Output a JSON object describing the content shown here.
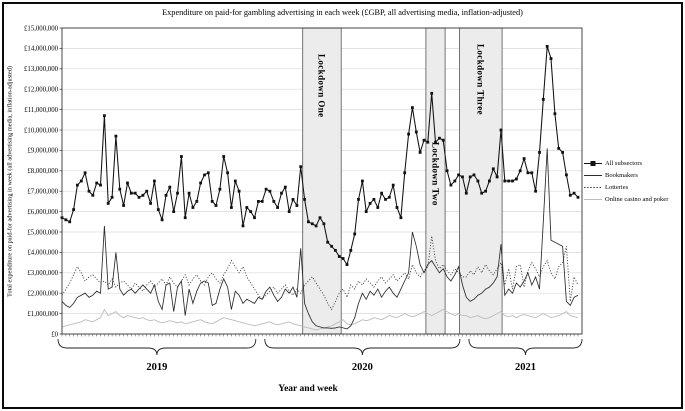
{
  "figure": {
    "title": "Expenditure on paid-for gambling advertising in each week (£GBP, all advertising media, inflation-adjusted)",
    "y_axis_title": "Total expenditure on paid-for advertising in week (all advertising media, inflation-adjusted)",
    "x_axis_title": "Year and week",
    "colors": {
      "all_subsectors": "#111111",
      "bookmakers": "#2b2b2b",
      "lotteries": "#3a3a3a",
      "online_casino_and_poker": "#bcbcbc",
      "lockdown_band_fill": "#ececec",
      "lockdown_band_border": "#555555",
      "gridline": "#dadada"
    }
  },
  "legend": {
    "position": "right",
    "items": [
      "All subsectors",
      "Bookmakers",
      "Lotteries",
      "Online casino and poker"
    ]
  },
  "lockdowns": [
    {
      "label": "Lockdown One",
      "weeks": [
        63,
        72
      ]
    },
    {
      "label": "Lockdown Two",
      "weeks": [
        95,
        99
      ]
    },
    {
      "label": "Lockdown Three",
      "weeks": [
        103.7,
        113.8
      ]
    }
  ],
  "years": [
    {
      "label": "2019",
      "week_indices": [
        0,
        51
      ],
      "weeks": 52
    },
    {
      "label": "2020",
      "week_indices": [
        52,
        104
      ],
      "weeks": 53
    },
    {
      "label": "2021",
      "week_indices": [
        105,
        134
      ],
      "weeks": 30
    }
  ],
  "chart_data": {
    "type": "line",
    "title": "Expenditure on paid-for gambling advertising in each week (£GBP, all advertising media, inflation-adjusted)",
    "xlabel": "Year and week",
    "ylabel": "Total expenditure on paid-for advertising in week (all advertising media, inflation-adjusted)",
    "x_unit": "week (2019 w1 - 2021 w30)",
    "values_unit": "GBP millions",
    "ylim_millions": [
      0,
      15
    ],
    "grid": "horizontal",
    "legend_position": "right-outside",
    "y_ticks": [
      {
        "label": "£0",
        "value": 0
      },
      {
        "label": "£1,000,000",
        "value": 1
      },
      {
        "label": "£2,000,000",
        "value": 2
      },
      {
        "label": "£3,000,000",
        "value": 3
      },
      {
        "label": "£4,000,000",
        "value": 4
      },
      {
        "label": "£5,000,000",
        "value": 5
      },
      {
        "label": "£6,000,000",
        "value": 6
      },
      {
        "label": "£7,000,000",
        "value": 7
      },
      {
        "label": "£8,000,000",
        "value": 8
      },
      {
        "label": "£9,000,000",
        "value": 9
      },
      {
        "label": "£10,000,000",
        "value": 10
      },
      {
        "label": "£11,000,000",
        "value": 11
      },
      {
        "label": "£12,000,000",
        "value": 12
      },
      {
        "label": "£13,000,000",
        "value": 13
      },
      {
        "label": "£14,000,000",
        "value": 14
      },
      {
        "label": "£15,000,000",
        "value": 15
      }
    ],
    "series": [
      {
        "name": "All subsectors",
        "marker": "square",
        "color": "#111111",
        "dash": "none",
        "width": 1.05,
        "values": [
          5.7,
          5.6,
          5.5,
          6.1,
          7.3,
          7.5,
          7.9,
          7.0,
          6.8,
          7.4,
          7.3,
          10.7,
          6.4,
          6.7,
          9.7,
          7.1,
          6.3,
          7.4,
          6.9,
          6.9,
          6.7,
          6.8,
          7.0,
          6.4,
          7.5,
          6.1,
          5.6,
          6.8,
          7.2,
          6.0,
          6.9,
          8.7,
          5.7,
          6.9,
          6.2,
          6.5,
          7.4,
          7.8,
          7.9,
          6.5,
          6.3,
          7.1,
          8.7,
          7.9,
          6.2,
          7.5,
          7.0,
          5.3,
          6.2,
          6.0,
          5.7,
          6.5,
          6.5,
          7.1,
          7.0,
          6.5,
          6.2,
          6.9,
          7.2,
          6.0,
          6.6,
          6.3,
          8.2,
          6.6,
          5.5,
          5.4,
          5.3,
          5.7,
          5.4,
          4.5,
          4.3,
          4.1,
          3.8,
          3.7,
          3.4,
          4.1,
          4.9,
          6.6,
          7.5,
          6.0,
          6.4,
          6.6,
          6.2,
          6.9,
          6.6,
          6.7,
          7.3,
          6.2,
          5.7,
          7.9,
          9.8,
          11.1,
          9.9,
          8.9,
          9.5,
          9.4,
          11.8,
          9.4,
          9.6,
          9.5,
          8.0,
          7.3,
          7.5,
          7.8,
          7.7,
          6.9,
          7.7,
          7.8,
          7.5,
          6.9,
          7.0,
          7.5,
          8.1,
          7.7,
          10.0,
          7.5,
          7.5,
          7.5,
          7.6,
          8.0,
          8.6,
          7.9,
          7.9,
          7.0,
          8.9,
          11.5,
          14.1,
          13.5,
          10.8,
          9.1,
          8.9,
          7.8,
          6.8,
          6.9,
          6.7
        ]
      },
      {
        "name": "Bookmakers",
        "marker": "none",
        "color": "#2b2b2b",
        "dash": "none",
        "width": 0.85,
        "values": [
          1.6,
          1.4,
          1.3,
          1.5,
          1.8,
          1.9,
          2.0,
          1.8,
          1.9,
          2.1,
          2.0,
          5.3,
          2.2,
          2.3,
          4.0,
          2.2,
          1.9,
          2.1,
          2.2,
          2.0,
          2.2,
          2.4,
          2.2,
          2.0,
          2.4,
          1.6,
          1.2,
          2.4,
          2.5,
          1.1,
          2.3,
          2.6,
          0.9,
          2.2,
          1.5,
          2.1,
          2.5,
          2.6,
          2.5,
          1.4,
          1.5,
          2.2,
          2.7,
          2.3,
          1.2,
          2.1,
          1.9,
          1.5,
          1.7,
          1.6,
          1.5,
          1.8,
          1.7,
          2.1,
          2.3,
          1.9,
          1.6,
          1.8,
          2.2,
          2.0,
          2.3,
          1.8,
          4.2,
          1.5,
          1.0,
          0.6,
          0.4,
          0.35,
          0.3,
          0.3,
          0.28,
          0.3,
          0.35,
          0.3,
          0.25,
          0.4,
          0.8,
          1.5,
          2.0,
          1.7,
          2.1,
          1.9,
          2.2,
          1.8,
          2.1,
          2.3,
          2.0,
          1.8,
          2.2,
          2.6,
          3.0,
          5.0,
          4.3,
          3.4,
          3.0,
          3.4,
          3.6,
          3.3,
          3.0,
          3.2,
          2.8,
          2.6,
          2.9,
          3.3,
          2.4,
          1.8,
          1.6,
          1.7,
          1.9,
          2.0,
          2.2,
          2.3,
          2.5,
          2.8,
          4.4,
          1.9,
          2.2,
          2.0,
          2.5,
          2.3,
          2.6,
          3.0,
          2.4,
          2.8,
          2.2,
          5.5,
          9.1,
          4.6,
          4.5,
          4.4,
          4.3,
          1.6,
          1.4,
          1.8,
          1.9
        ]
      },
      {
        "name": "Lotteries",
        "marker": "none",
        "color": "#3a3a3a",
        "dash": "1.1 1.7",
        "width": 0.9,
        "values": [
          1.9,
          2.2,
          2.5,
          2.9,
          3.3,
          3.0,
          2.6,
          2.8,
          2.9,
          2.7,
          2.5,
          2.6,
          2.4,
          2.7,
          2.3,
          2.5,
          2.6,
          2.4,
          2.2,
          2.5,
          2.3,
          2.1,
          2.4,
          2.6,
          2.3,
          2.5,
          2.7,
          2.4,
          2.8,
          2.5,
          2.3,
          2.6,
          2.9,
          2.4,
          2.7,
          2.9,
          2.6,
          2.4,
          2.8,
          3.0,
          2.7,
          2.5,
          2.9,
          3.2,
          3.6,
          3.3,
          3.0,
          3.3,
          2.8,
          2.5,
          2.2,
          1.9,
          1.7,
          1.9,
          2.1,
          2.3,
          2.0,
          2.2,
          2.4,
          2.1,
          1.9,
          2.2,
          2.0,
          2.4,
          2.6,
          2.8,
          2.5,
          2.2,
          1.9,
          1.5,
          1.2,
          1.6,
          2.0,
          2.2,
          1.8,
          2.4,
          2.2,
          2.6,
          2.4,
          2.7,
          2.5,
          2.3,
          2.6,
          2.8,
          2.5,
          2.7,
          2.9,
          2.6,
          2.8,
          3.0,
          2.7,
          3.4,
          3.0,
          2.8,
          3.1,
          3.3,
          4.8,
          3.6,
          3.2,
          3.4,
          3.1,
          2.9,
          3.2,
          3.0,
          2.8,
          2.8,
          3.1,
          2.9,
          3.3,
          3.0,
          3.4,
          3.1,
          2.9,
          3.2,
          3.5,
          2.4,
          3.2,
          2.2,
          3.3,
          3.4,
          2.3,
          3.1,
          3.5,
          3.2,
          2.8,
          3.3,
          3.6,
          3.0,
          2.7,
          3.3,
          3.5,
          4.3,
          1.6,
          2.8,
          2.4
        ]
      },
      {
        "name": "Online casino and poker",
        "marker": "none",
        "color": "#bcbcbc",
        "dash": "none",
        "width": 0.9,
        "values": [
          0.35,
          0.4,
          0.45,
          0.5,
          0.55,
          0.6,
          0.7,
          0.65,
          0.6,
          0.7,
          0.8,
          1.2,
          0.9,
          1.0,
          1.1,
          0.9,
          0.8,
          0.9,
          0.85,
          0.8,
          0.75,
          0.8,
          0.7,
          0.65,
          0.7,
          0.6,
          0.55,
          0.6,
          0.65,
          0.6,
          0.55,
          0.6,
          0.5,
          0.55,
          0.6,
          0.65,
          0.7,
          0.6,
          0.55,
          0.5,
          0.6,
          0.7,
          0.8,
          0.75,
          0.7,
          0.65,
          0.6,
          0.55,
          0.5,
          0.45,
          0.4,
          0.45,
          0.5,
          0.55,
          0.6,
          0.5,
          0.45,
          0.5,
          0.55,
          0.6,
          0.5,
          0.45,
          0.4,
          0.35,
          0.3,
          0.25,
          0.2,
          0.25,
          0.3,
          0.35,
          0.4,
          0.5,
          0.6,
          0.7,
          0.5,
          0.45,
          0.5,
          0.6,
          0.7,
          0.65,
          0.7,
          0.8,
          0.75,
          0.7,
          0.8,
          0.9,
          0.85,
          0.8,
          0.9,
          1.0,
          0.9,
          0.85,
          0.9,
          1.0,
          1.1,
          1.0,
          0.9,
          1.0,
          1.1,
          1.2,
          1.1,
          1.0,
          0.9,
          1.0,
          0.9,
          0.9,
          0.8,
          0.85,
          0.9,
          0.8,
          0.75,
          0.8,
          0.9,
          1.0,
          1.1,
          0.9,
          0.85,
          0.9,
          0.8,
          0.9,
          0.95,
          0.9,
          0.85,
          0.8,
          0.9,
          1.0,
          0.9,
          0.8,
          0.85,
          0.9,
          1.0,
          1.1,
          0.9,
          0.85,
          0.8
        ]
      }
    ]
  }
}
